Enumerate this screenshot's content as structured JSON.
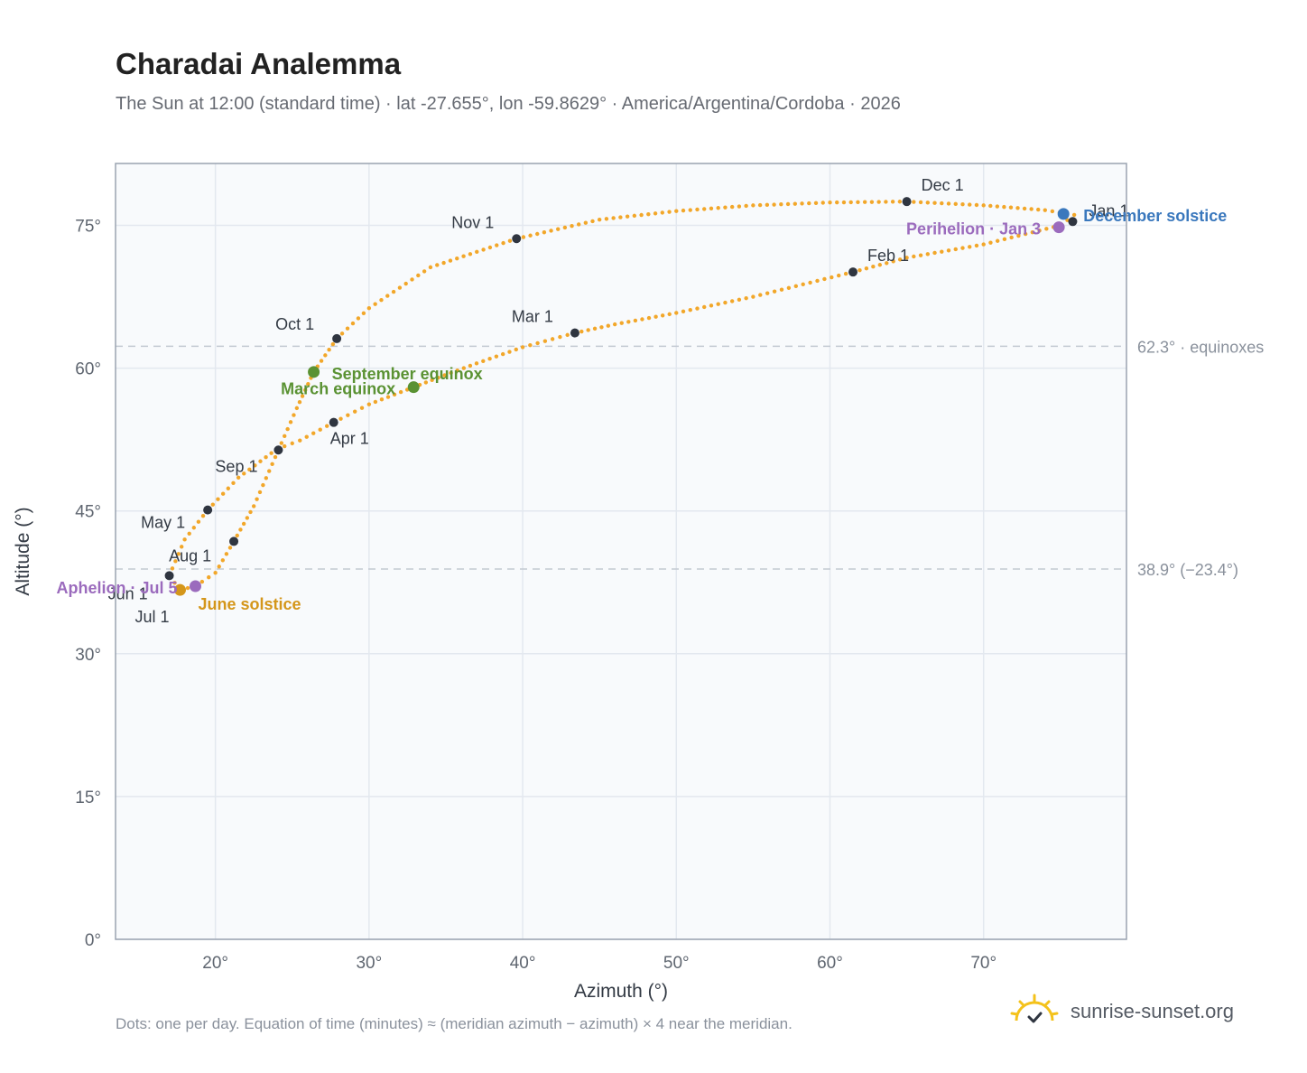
{
  "title": "Charadai Analemma",
  "subtitle": "The Sun at 12:00 (standard time) · lat -27.655°, lon -59.8629° · America/Argentina/Cordoba · 2026",
  "footnote": "Dots: one per day. Equation of time (minutes) ≈ (meridian azimuth − azimuth) × 4 near the meridian.",
  "brand": {
    "name": "sunrise-sunset.org",
    "icon": "sun-logo-icon"
  },
  "colors": {
    "curve": "#f2a72a",
    "month_marker": "#2f3540",
    "equinox": "#5a9233",
    "june_solstice": "#d4961a",
    "december_solstice": "#3a78bd",
    "apsis": "#9b6bbd",
    "plot_bg": "#f8fafc",
    "grid": "#e3e8ef",
    "reference_line": "#c3c9d2"
  },
  "chart_data": {
    "type": "scatter",
    "xlabel": "Azimuth (°)",
    "ylabel": "Altitude (°)",
    "xlim": [
      13.5,
      79.3
    ],
    "ylim": [
      0,
      81.5
    ],
    "x_ticks": [
      20,
      30,
      40,
      50,
      60,
      70
    ],
    "x_tick_labels": [
      "20°",
      "30°",
      "40°",
      "50°",
      "60°",
      "70°"
    ],
    "y_ticks": [
      0,
      15,
      30,
      45,
      60,
      75
    ],
    "y_tick_labels": [
      "0°",
      "15°",
      "30°",
      "45°",
      "60°",
      "75°"
    ],
    "grid": true,
    "reference_lines": [
      {
        "y": 62.3,
        "label": "62.3° · equinoxes"
      },
      {
        "y": 38.9,
        "label": "38.9° (−23.4°)"
      }
    ],
    "series": [
      {
        "points_per": "day",
        "points": [
          [
            75.9,
            76.1
          ],
          [
            75.0,
            75.0
          ],
          [
            70.0,
            73.0
          ],
          [
            65.0,
            71.6
          ],
          [
            61.5,
            70.1
          ],
          [
            55.0,
            67.5
          ],
          [
            50.0,
            65.8
          ],
          [
            46.0,
            64.6
          ],
          [
            43.4,
            63.7
          ],
          [
            40.0,
            62.2
          ],
          [
            37.0,
            60.5
          ],
          [
            34.5,
            59.0
          ],
          [
            32.9,
            58.0
          ],
          [
            30.0,
            56.2
          ],
          [
            27.7,
            54.3
          ],
          [
            25.5,
            52.4
          ],
          [
            24.0,
            51.5
          ],
          [
            21.5,
            48.5
          ],
          [
            19.5,
            45.1
          ],
          [
            18.0,
            42.0
          ],
          [
            17.0,
            38.2
          ],
          [
            17.7,
            36.7
          ],
          [
            18.7,
            37.1
          ],
          [
            20.0,
            38.5
          ],
          [
            21.2,
            41.8
          ],
          [
            22.5,
            45.5
          ],
          [
            24.1,
            51.4
          ],
          [
            25.3,
            55.8
          ],
          [
            26.4,
            59.6
          ],
          [
            27.9,
            63.1
          ],
          [
            30.0,
            66.3
          ],
          [
            34.0,
            70.6
          ],
          [
            39.6,
            73.6
          ],
          [
            45.0,
            75.6
          ],
          [
            50.0,
            76.5
          ],
          [
            55.0,
            77.1
          ],
          [
            60.0,
            77.4
          ],
          [
            65.0,
            77.5
          ],
          [
            70.0,
            77.1
          ],
          [
            74.0,
            76.6
          ],
          [
            75.9,
            76.1
          ]
        ]
      }
    ],
    "month_markers": [
      {
        "label": "Jan 1",
        "x": 75.8,
        "y": 75.4
      },
      {
        "label": "Feb 1",
        "x": 61.5,
        "y": 70.1
      },
      {
        "label": "Mar 1",
        "x": 43.4,
        "y": 63.7
      },
      {
        "label": "Apr 1",
        "x": 27.7,
        "y": 54.3
      },
      {
        "label": "May 1",
        "x": 19.5,
        "y": 45.1
      },
      {
        "label": "Jun 1",
        "x": 17.0,
        "y": 38.2
      },
      {
        "label": "Jul 1",
        "x": 17.7,
        "y": 36.7
      },
      {
        "label": "Aug 1",
        "x": 21.2,
        "y": 41.8
      },
      {
        "label": "Sep 1",
        "x": 24.1,
        "y": 51.4
      },
      {
        "label": "Oct 1",
        "x": 27.9,
        "y": 63.1
      },
      {
        "label": "Nov 1",
        "x": 39.6,
        "y": 73.6
      },
      {
        "label": "Dec 1",
        "x": 65.0,
        "y": 77.5
      }
    ],
    "events": [
      {
        "label": "December solstice",
        "x": 75.2,
        "y": 76.2,
        "color_key": "december_solstice"
      },
      {
        "label": "Perihelion · Jan 3",
        "x": 74.9,
        "y": 74.8,
        "color_key": "apsis"
      },
      {
        "label": "September equinox",
        "x": 26.4,
        "y": 59.6,
        "color_key": "equinox"
      },
      {
        "label": "March equinox",
        "x": 32.9,
        "y": 58.0,
        "color_key": "equinox"
      },
      {
        "label": "June solstice",
        "x": 17.7,
        "y": 36.7,
        "color_key": "june_solstice"
      },
      {
        "label": "Aphelion · Jul 5",
        "x": 18.7,
        "y": 37.1,
        "color_key": "apsis"
      }
    ]
  }
}
